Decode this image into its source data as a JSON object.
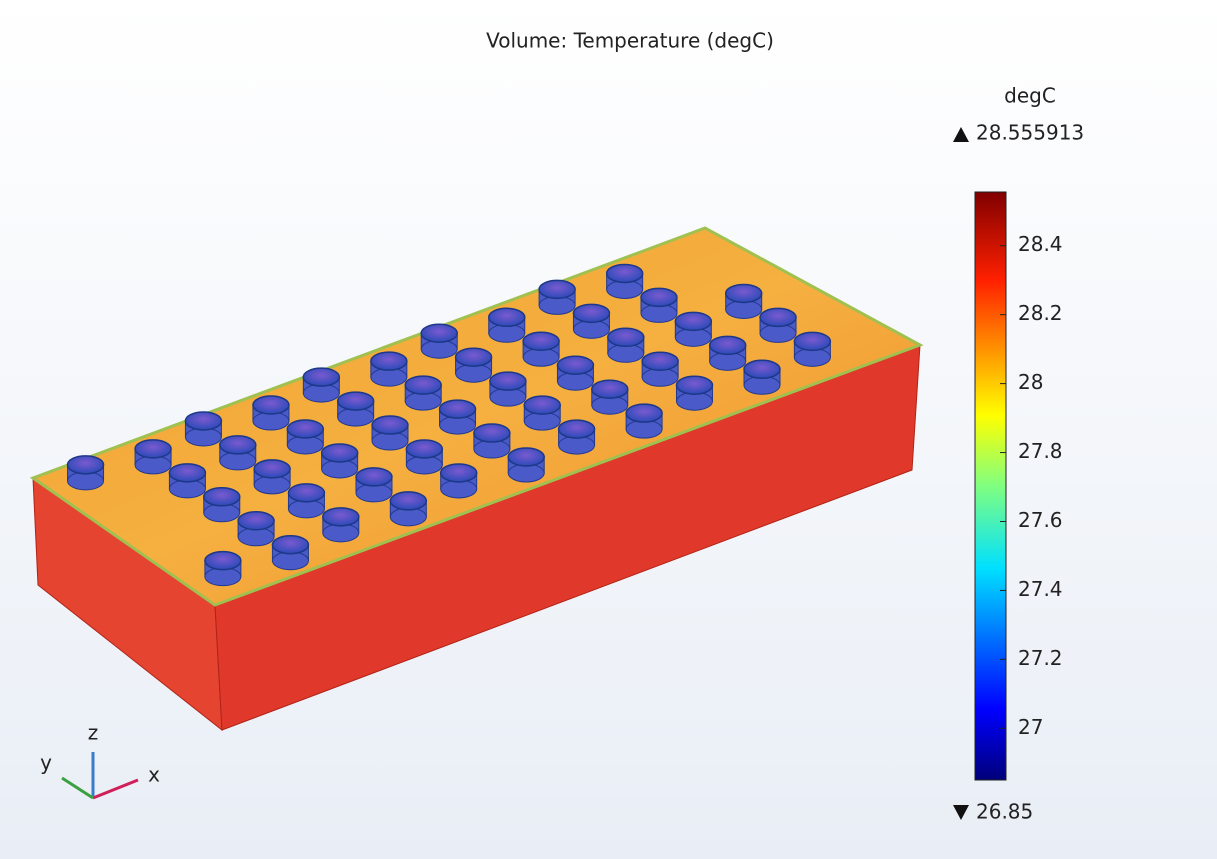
{
  "plot": {
    "title": "Volume: Temperature (degC)",
    "colorbar": {
      "unit": "degC",
      "max": 28.555913,
      "min": 26.85,
      "ticks": [
        27,
        27.2,
        27.4,
        27.6,
        27.8,
        28,
        28.2,
        28.4
      ]
    },
    "axes": {
      "x": "x",
      "y": "y",
      "z": "z"
    }
  }
}
